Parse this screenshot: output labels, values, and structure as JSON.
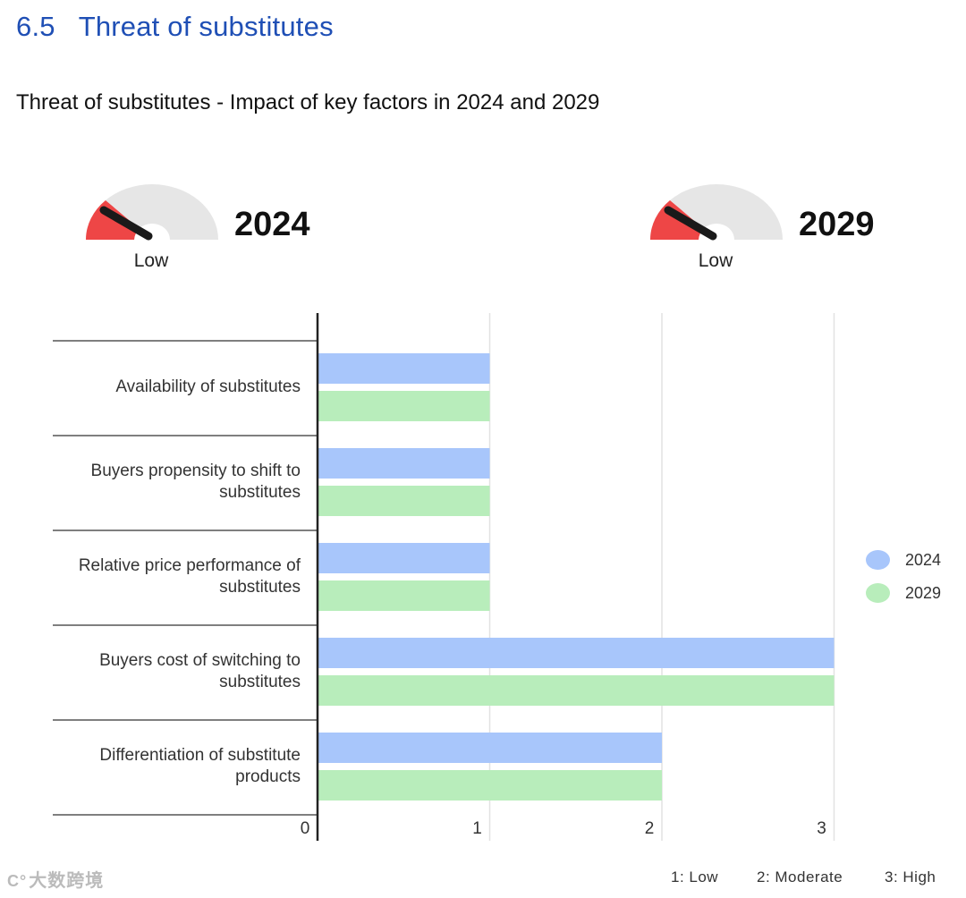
{
  "section": {
    "number": "6.5",
    "title": "Threat of substitutes"
  },
  "chart_title": "Threat of substitutes - Impact of key factors in 2024 and 2029",
  "gauges": [
    {
      "year": "2024",
      "level": "Low",
      "value": 1
    },
    {
      "year": "2029",
      "level": "Low",
      "value": 1
    }
  ],
  "colors": {
    "series_2024": "#a8c6fb",
    "series_2029": "#b8edbb",
    "gauge_active": "#ee4646",
    "gauge_track": "#e6e6e6",
    "needle": "#1a1a1a",
    "title_blue": "#1f4fb5"
  },
  "chart_data": {
    "type": "bar",
    "orientation": "horizontal",
    "title": "Threat of substitutes - Impact of key factors in 2024 and 2029",
    "categories": [
      "Availability of substitutes",
      "Buyers propensity to shift to substitutes",
      "Relative price performance of substitutes",
      "Buyers cost of switching to substitutes",
      "Differentiation of substitute products"
    ],
    "category_lines": [
      [
        "Availability of substitutes"
      ],
      [
        "Buyers propensity to shift to",
        "substitutes"
      ],
      [
        "Relative price performance of",
        "substitutes"
      ],
      [
        "Buyers cost of switching to",
        "substitutes"
      ],
      [
        "Differentiation of substitute",
        "products"
      ]
    ],
    "series": [
      {
        "name": "2024",
        "values": [
          1,
          1,
          1,
          3,
          2
        ]
      },
      {
        "name": "2029",
        "values": [
          1,
          1,
          1,
          3,
          2
        ]
      }
    ],
    "xlim": [
      0,
      3
    ],
    "xticks": [
      "0",
      "1",
      "2",
      "3"
    ],
    "grid": true,
    "legend": "right"
  },
  "scale_notes": [
    "1: Low",
    "2: Moderate",
    "3: High"
  ],
  "watermark": {
    "icon": "C°",
    "text": "大数跨境"
  }
}
